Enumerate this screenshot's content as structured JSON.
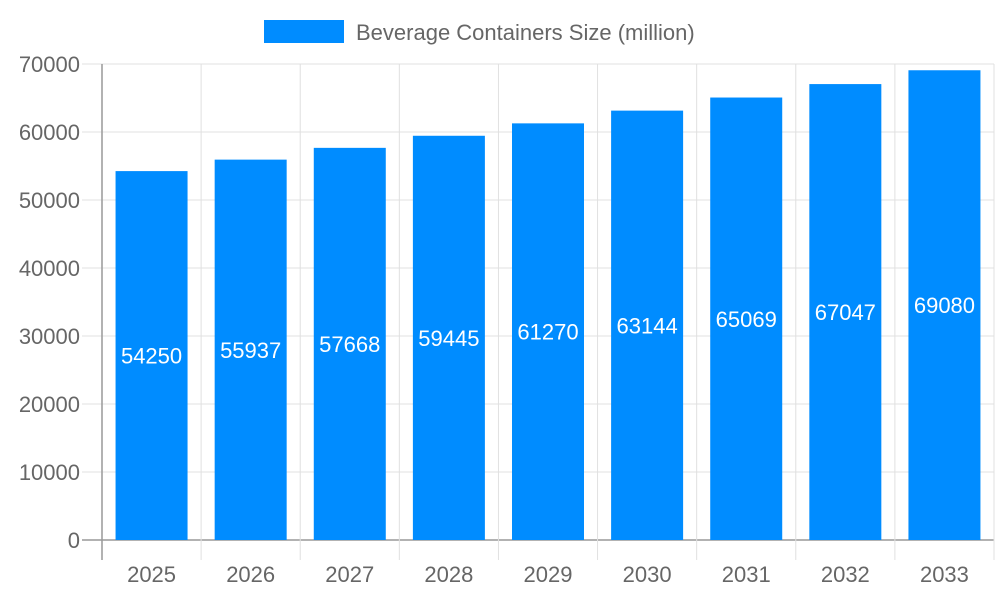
{
  "chart_data": {
    "type": "bar",
    "title": "",
    "xlabel": "",
    "ylabel": "",
    "categories": [
      "2025",
      "2026",
      "2027",
      "2028",
      "2029",
      "2030",
      "2031",
      "2032",
      "2033"
    ],
    "series": [
      {
        "name": "Beverage Containers Size (million)",
        "values": [
          54250,
          55937,
          57668,
          59445,
          61270,
          63144,
          65069,
          67047,
          69080
        ],
        "color": "#008cff"
      }
    ],
    "ylim": [
      0,
      70000
    ],
    "yticks": [
      0,
      10000,
      20000,
      30000,
      40000,
      50000,
      60000,
      70000
    ],
    "grid": true,
    "legend": "top-center",
    "data_labels": "inside-center"
  }
}
